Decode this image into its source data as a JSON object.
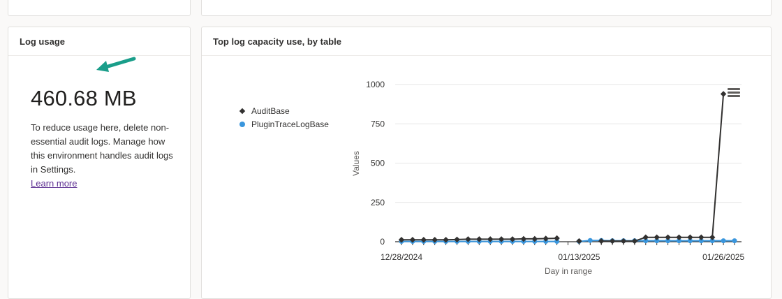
{
  "log_usage": {
    "title": "Log usage",
    "value": "460.68 MB",
    "description": "To reduce usage here, delete non-essential audit logs. Manage how this environment handles audit logs in Settings.",
    "learn_more": "Learn more"
  },
  "log_capacity": {
    "title": "Top log capacity use, by table",
    "legend": [
      {
        "name": "AuditBase",
        "marker": "diamond",
        "color": "#323130"
      },
      {
        "name": "PluginTraceLogBase",
        "marker": "dot",
        "color": "#3a96dd"
      }
    ]
  },
  "icons": {
    "annotation": "arrow-icon",
    "chart_menu": "hamburger-menu-icon"
  },
  "chart_data": {
    "type": "line",
    "title": "",
    "xlabel": "Day in range",
    "ylabel": "Values",
    "ylim": [
      0,
      1000
    ],
    "yticks": [
      0,
      250,
      500,
      750,
      1000
    ],
    "xtick_labels": [
      "12/28/2024",
      "01/13/2025",
      "01/26/2025"
    ],
    "grid": true,
    "x": [
      "12/28/2024",
      "12/29/2024",
      "12/30/2024",
      "12/31/2024",
      "01/01/2025",
      "01/02/2025",
      "01/03/2025",
      "01/04/2025",
      "01/05/2025",
      "01/06/2025",
      "01/07/2025",
      "01/08/2025",
      "01/09/2025",
      "01/10/2025",
      "01/11/2025",
      "01/12/2025",
      "01/13/2025",
      "01/14/2025",
      "01/15/2025",
      "01/16/2025",
      "01/17/2025",
      "01/18/2025",
      "01/19/2025",
      "01/20/2025",
      "01/21/2025",
      "01/22/2025",
      "01/23/2025",
      "01/24/2025",
      "01/25/2025",
      "01/26/2025",
      "01/27/2025"
    ],
    "series": [
      {
        "name": "AuditBase",
        "color": "#323130",
        "marker": "diamond",
        "values": [
          12,
          12,
          12,
          12,
          12,
          14,
          16,
          16,
          16,
          16,
          16,
          18,
          18,
          20,
          22,
          null,
          4,
          null,
          4,
          4,
          4,
          4,
          28,
          28,
          28,
          28,
          28,
          28,
          28,
          940,
          null
        ]
      },
      {
        "name": "PluginTraceLogBase",
        "color": "#3a96dd",
        "marker": "dot",
        "values": [
          2,
          2,
          2,
          2,
          2,
          2,
          2,
          2,
          2,
          2,
          2,
          2,
          2,
          2,
          2,
          null,
          2,
          8,
          8,
          6,
          6,
          6,
          6,
          6,
          6,
          6,
          6,
          6,
          6,
          6,
          6
        ]
      }
    ]
  }
}
